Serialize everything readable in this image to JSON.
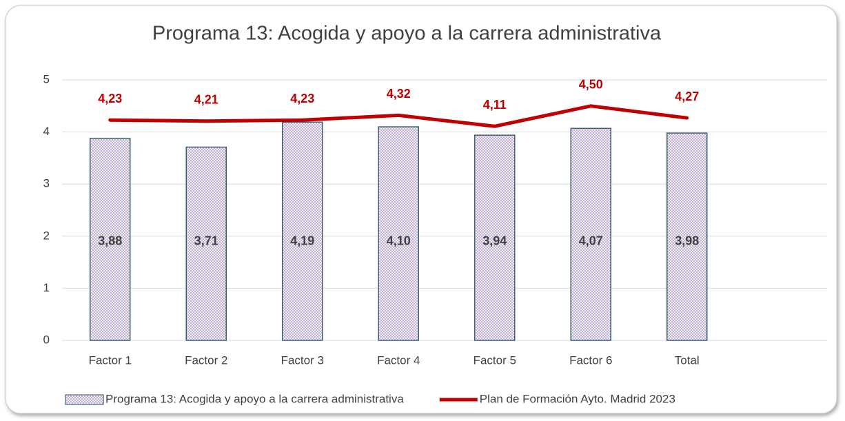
{
  "chart_data": {
    "type": "combo",
    "title": "Programa 13: Acogida y apoyo a la carrera administrativa",
    "categories": [
      "Factor 1",
      "Factor 2",
      "Factor 3",
      "Factor 4",
      "Factor 5",
      "Factor 6",
      "Total"
    ],
    "series": [
      {
        "name": "Programa 13: Acogida y apoyo a la carrera administrativa",
        "type": "bar",
        "color": "#e4d8ee",
        "values": [
          3.88,
          3.71,
          4.19,
          4.1,
          3.94,
          4.07,
          3.98
        ],
        "value_labels": [
          "3,88",
          "3,71",
          "4,19",
          "4,10",
          "3,94",
          "4,07",
          "3,98"
        ]
      },
      {
        "name": "Plan de Formación Ayto. Madrid 2023",
        "type": "line",
        "color": "#c00000",
        "values": [
          4.23,
          4.21,
          4.23,
          4.32,
          4.11,
          4.5,
          4.27
        ],
        "value_labels": [
          "4,23",
          "4,21",
          "4,23",
          "4,32",
          "4,11",
          "4,50",
          "4,27"
        ]
      }
    ],
    "ylim": [
      0,
      5
    ],
    "yticks": [
      0,
      1,
      2,
      3,
      4,
      5
    ],
    "grid": true,
    "legend": "bottom"
  }
}
